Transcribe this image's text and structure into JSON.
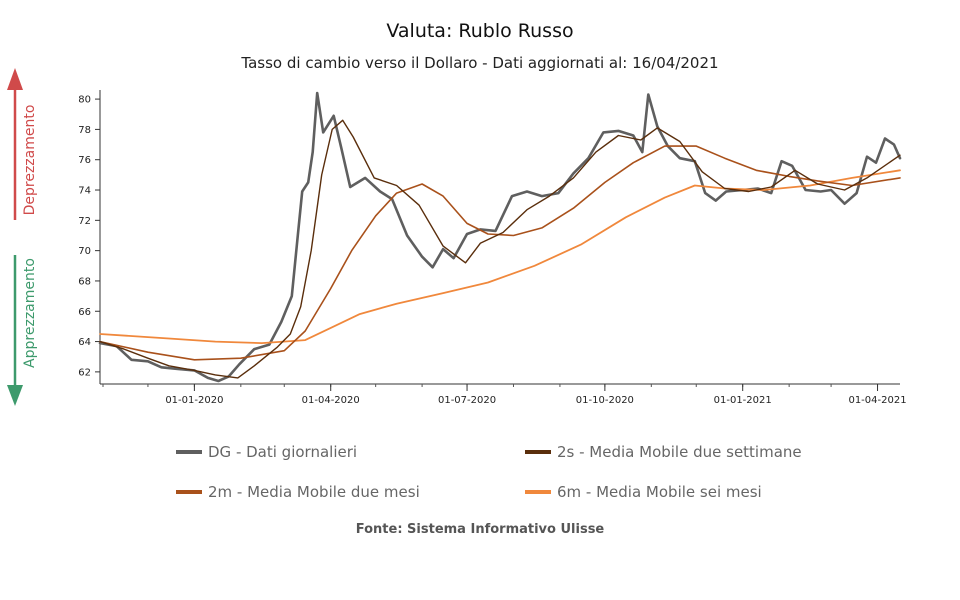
{
  "chart_data": {
    "type": "line",
    "title": "Valuta: Rublo Russo",
    "subtitle": "Tasso di cambio verso il Dollaro - Dati aggiornati al: 16/04/2021",
    "xlabel": "",
    "ylabel": "",
    "ylim": [
      61.2,
      80.6
    ],
    "yticks": [
      62,
      64,
      66,
      68,
      70,
      72,
      74,
      76,
      78,
      80
    ],
    "xlim": [
      "2019-10-30",
      "2021-04-16"
    ],
    "xticks": [
      {
        "date": "2020-01-01",
        "label": "01-01-2020"
      },
      {
        "date": "2020-04-01",
        "label": "01-04-2020"
      },
      {
        "date": "2020-07-01",
        "label": "01-07-2020"
      },
      {
        "date": "2020-10-01",
        "label": "01-10-2020"
      },
      {
        "date": "2021-01-01",
        "label": "01-01-2021"
      },
      {
        "date": "2021-04-01",
        "label": "01-04-2021"
      }
    ],
    "legend_position": "bottom",
    "series": [
      {
        "name": "DG - Dati giornalieri",
        "color": "#5f5f5f",
        "points": [
          [
            "2019-10-30",
            63.9
          ],
          [
            "2019-11-10",
            63.7
          ],
          [
            "2019-11-20",
            62.8
          ],
          [
            "2019-12-01",
            62.7
          ],
          [
            "2019-12-10",
            62.3
          ],
          [
            "2019-12-20",
            62.2
          ],
          [
            "2020-01-01",
            62.1
          ],
          [
            "2020-01-10",
            61.6
          ],
          [
            "2020-01-17",
            61.4
          ],
          [
            "2020-01-24",
            61.7
          ],
          [
            "2020-01-31",
            62.5
          ],
          [
            "2020-02-10",
            63.5
          ],
          [
            "2020-02-20",
            63.8
          ],
          [
            "2020-02-28",
            65.3
          ],
          [
            "2020-03-06",
            67.0
          ],
          [
            "2020-03-10",
            71.0
          ],
          [
            "2020-03-13",
            73.9
          ],
          [
            "2020-03-17",
            74.5
          ],
          [
            "2020-03-20",
            76.5
          ],
          [
            "2020-03-23",
            80.4
          ],
          [
            "2020-03-27",
            77.8
          ],
          [
            "2020-04-03",
            78.9
          ],
          [
            "2020-04-08",
            76.8
          ],
          [
            "2020-04-14",
            74.2
          ],
          [
            "2020-04-24",
            74.8
          ],
          [
            "2020-05-04",
            73.9
          ],
          [
            "2020-05-12",
            73.4
          ],
          [
            "2020-05-22",
            71.0
          ],
          [
            "2020-06-01",
            69.6
          ],
          [
            "2020-06-08",
            68.9
          ],
          [
            "2020-06-15",
            70.1
          ],
          [
            "2020-06-22",
            69.5
          ],
          [
            "2020-07-01",
            71.1
          ],
          [
            "2020-07-10",
            71.4
          ],
          [
            "2020-07-20",
            71.3
          ],
          [
            "2020-07-31",
            73.6
          ],
          [
            "2020-08-10",
            73.9
          ],
          [
            "2020-08-20",
            73.6
          ],
          [
            "2020-08-31",
            73.8
          ],
          [
            "2020-09-10",
            75.1
          ],
          [
            "2020-09-20",
            76.1
          ],
          [
            "2020-09-30",
            77.8
          ],
          [
            "2020-10-10",
            77.9
          ],
          [
            "2020-10-20",
            77.6
          ],
          [
            "2020-10-26",
            76.5
          ],
          [
            "2020-10-30",
            80.3
          ],
          [
            "2020-11-05",
            78.2
          ],
          [
            "2020-11-12",
            76.9
          ],
          [
            "2020-11-20",
            76.1
          ],
          [
            "2020-11-30",
            75.9
          ],
          [
            "2020-12-07",
            73.8
          ],
          [
            "2020-12-14",
            73.3
          ],
          [
            "2020-12-21",
            73.9
          ],
          [
            "2021-01-01",
            74.0
          ],
          [
            "2021-01-11",
            74.1
          ],
          [
            "2021-01-20",
            73.8
          ],
          [
            "2021-01-27",
            75.9
          ],
          [
            "2021-02-03",
            75.6
          ],
          [
            "2021-02-12",
            74.0
          ],
          [
            "2021-02-22",
            73.9
          ],
          [
            "2021-03-01",
            74.0
          ],
          [
            "2021-03-10",
            73.1
          ],
          [
            "2021-03-18",
            73.8
          ],
          [
            "2021-03-25",
            76.2
          ],
          [
            "2021-03-31",
            75.8
          ],
          [
            "2021-04-06",
            77.4
          ],
          [
            "2021-04-12",
            77.0
          ],
          [
            "2021-04-16",
            76.1
          ]
        ]
      },
      {
        "name": "2s - Media Mobile due settimane",
        "color": "#5a2e0c",
        "points": [
          [
            "2019-10-30",
            64.0
          ],
          [
            "2019-11-15",
            63.5
          ],
          [
            "2019-12-01",
            62.9
          ],
          [
            "2019-12-15",
            62.4
          ],
          [
            "2020-01-01",
            62.1
          ],
          [
            "2020-01-15",
            61.8
          ],
          [
            "2020-01-30",
            61.6
          ],
          [
            "2020-02-10",
            62.4
          ],
          [
            "2020-02-25",
            63.6
          ],
          [
            "2020-03-05",
            64.5
          ],
          [
            "2020-03-12",
            66.3
          ],
          [
            "2020-03-19",
            70.0
          ],
          [
            "2020-03-26",
            75.0
          ],
          [
            "2020-04-02",
            78.0
          ],
          [
            "2020-04-09",
            78.6
          ],
          [
            "2020-04-16",
            77.5
          ],
          [
            "2020-04-30",
            74.8
          ],
          [
            "2020-05-15",
            74.3
          ],
          [
            "2020-05-30",
            73.0
          ],
          [
            "2020-06-15",
            70.3
          ],
          [
            "2020-06-30",
            69.2
          ],
          [
            "2020-07-10",
            70.5
          ],
          [
            "2020-07-25",
            71.2
          ],
          [
            "2020-08-10",
            72.7
          ],
          [
            "2020-08-25",
            73.6
          ],
          [
            "2020-09-10",
            74.8
          ],
          [
            "2020-09-25",
            76.5
          ],
          [
            "2020-10-10",
            77.6
          ],
          [
            "2020-10-25",
            77.3
          ],
          [
            "2020-11-05",
            78.1
          ],
          [
            "2020-11-20",
            77.2
          ],
          [
            "2020-12-05",
            75.2
          ],
          [
            "2020-12-20",
            74.1
          ],
          [
            "2021-01-05",
            73.9
          ],
          [
            "2021-01-20",
            74.2
          ],
          [
            "2021-02-05",
            75.3
          ],
          [
            "2021-02-20",
            74.4
          ],
          [
            "2021-03-10",
            74.0
          ],
          [
            "2021-03-25",
            74.8
          ],
          [
            "2021-04-16",
            76.3
          ]
        ]
      },
      {
        "name": "2m - Media Mobile due mesi",
        "color": "#a9511b",
        "points": [
          [
            "2019-10-30",
            64.0
          ],
          [
            "2019-12-01",
            63.3
          ],
          [
            "2020-01-01",
            62.8
          ],
          [
            "2020-02-01",
            62.9
          ],
          [
            "2020-03-01",
            63.4
          ],
          [
            "2020-03-15",
            64.7
          ],
          [
            "2020-04-01",
            67.5
          ],
          [
            "2020-04-15",
            70.0
          ],
          [
            "2020-05-01",
            72.3
          ],
          [
            "2020-05-15",
            73.8
          ],
          [
            "2020-06-01",
            74.4
          ],
          [
            "2020-06-15",
            73.6
          ],
          [
            "2020-07-01",
            71.8
          ],
          [
            "2020-07-15",
            71.1
          ],
          [
            "2020-08-01",
            71.0
          ],
          [
            "2020-08-20",
            71.5
          ],
          [
            "2020-09-10",
            72.8
          ],
          [
            "2020-10-01",
            74.5
          ],
          [
            "2020-10-20",
            75.8
          ],
          [
            "2020-11-10",
            76.9
          ],
          [
            "2020-12-01",
            76.9
          ],
          [
            "2020-12-20",
            76.1
          ],
          [
            "2021-01-10",
            75.3
          ],
          [
            "2021-02-01",
            74.9
          ],
          [
            "2021-02-20",
            74.6
          ],
          [
            "2021-03-15",
            74.3
          ],
          [
            "2021-04-16",
            74.8
          ]
        ]
      },
      {
        "name": "6m - Media Mobile sei mesi",
        "color": "#f0883c",
        "points": [
          [
            "2019-10-30",
            64.5
          ],
          [
            "2019-12-15",
            64.2
          ],
          [
            "2020-01-15",
            64.0
          ],
          [
            "2020-02-15",
            63.9
          ],
          [
            "2020-03-15",
            64.1
          ],
          [
            "2020-04-01",
            64.9
          ],
          [
            "2020-04-20",
            65.8
          ],
          [
            "2020-05-15",
            66.5
          ],
          [
            "2020-06-15",
            67.2
          ],
          [
            "2020-07-15",
            67.9
          ],
          [
            "2020-08-15",
            69.0
          ],
          [
            "2020-09-15",
            70.4
          ],
          [
            "2020-10-15",
            72.2
          ],
          [
            "2020-11-10",
            73.5
          ],
          [
            "2020-11-30",
            74.3
          ],
          [
            "2020-12-20",
            74.1
          ],
          [
            "2021-01-15",
            74.0
          ],
          [
            "2021-02-15",
            74.3
          ],
          [
            "2021-03-15",
            74.8
          ],
          [
            "2021-04-16",
            75.3
          ]
        ]
      }
    ]
  },
  "side_labels": {
    "up": "Deprezzamento",
    "down": "Apprezzamento",
    "up_color": "#d04a4a",
    "down_color": "#3d9a6c"
  },
  "source": "Fonte: Sistema Informativo Ulisse"
}
